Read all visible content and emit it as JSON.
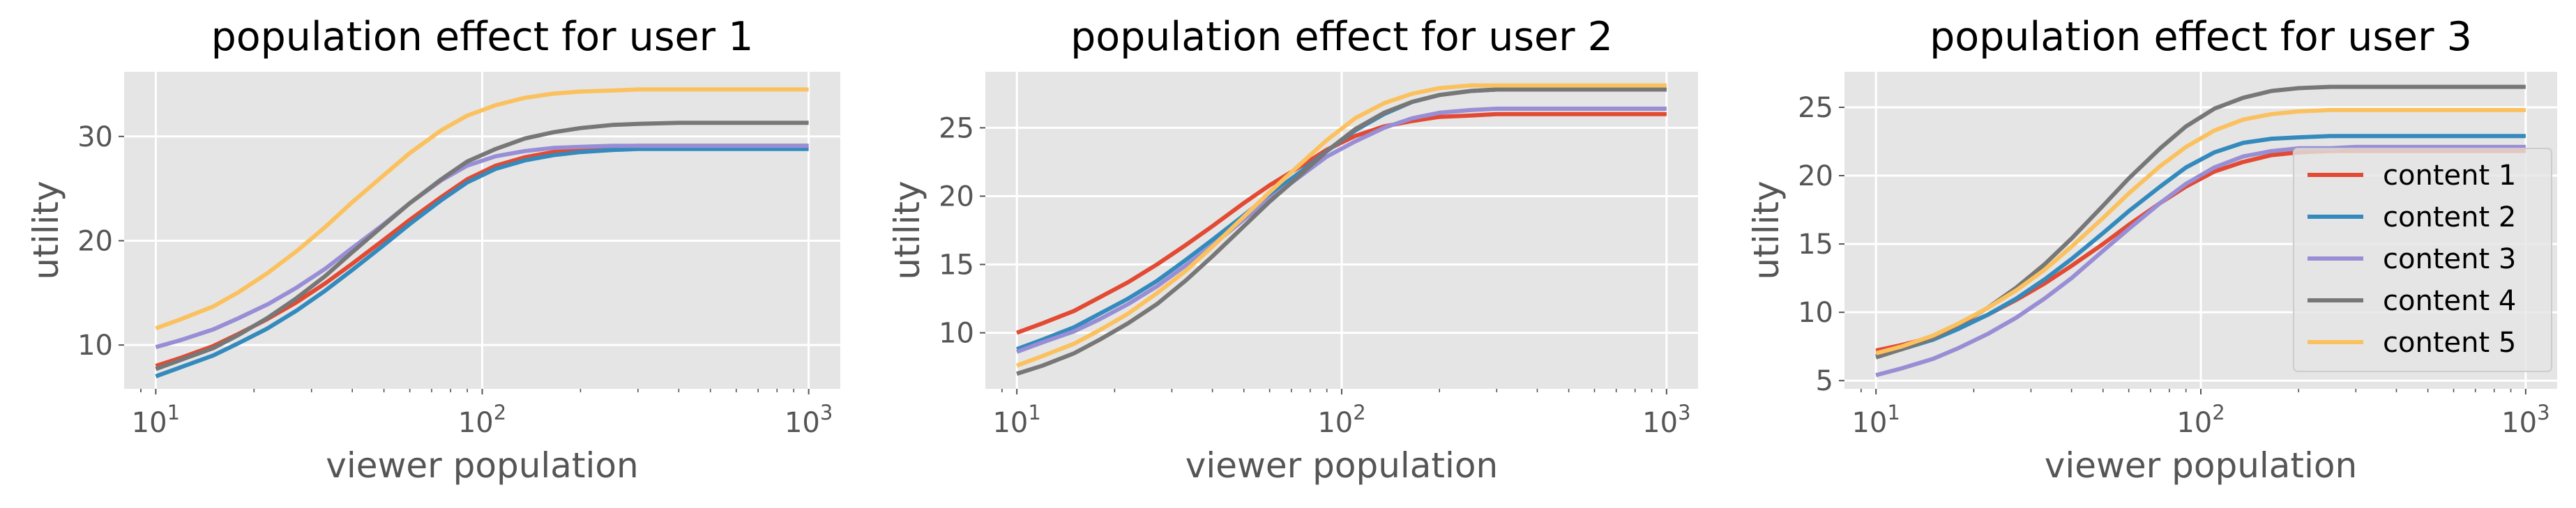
{
  "chart_data": [
    {
      "type": "line",
      "title": "population effect for user 1",
      "xlabel": "viewer population",
      "ylabel": "utility",
      "xscale": "log",
      "xlim": [
        8,
        1250
      ],
      "ylim": [
        5.8,
        36.2
      ],
      "xticks": [
        10,
        100,
        1000
      ],
      "yticks": [
        10,
        20,
        30
      ],
      "grid": true,
      "x": [
        10,
        12,
        15,
        18,
        22,
        27,
        33,
        40,
        50,
        60,
        75,
        90,
        110,
        135,
        165,
        200,
        250,
        300,
        400,
        500,
        700,
        1000
      ],
      "series": [
        {
          "name": "content 1",
          "color": "#E24A33",
          "values": [
            8.0,
            8.8,
            9.9,
            11.1,
            12.5,
            14.1,
            15.9,
            17.8,
            20.1,
            22.0,
            24.2,
            25.9,
            27.2,
            28.0,
            28.5,
            28.8,
            29.0,
            29.1,
            29.1,
            29.1,
            29.1,
            29.1
          ]
        },
        {
          "name": "content 2",
          "color": "#348ABD",
          "values": [
            7.0,
            7.9,
            9.0,
            10.2,
            11.6,
            13.3,
            15.2,
            17.2,
            19.6,
            21.6,
            23.9,
            25.6,
            26.9,
            27.7,
            28.2,
            28.5,
            28.7,
            28.8,
            28.8,
            28.8,
            28.8,
            28.8
          ]
        },
        {
          "name": "content 3",
          "color": "#988ED5",
          "values": [
            9.8,
            10.5,
            11.5,
            12.6,
            13.9,
            15.5,
            17.3,
            19.3,
            21.6,
            23.6,
            25.8,
            27.2,
            28.1,
            28.6,
            28.9,
            29.0,
            29.1,
            29.1,
            29.1,
            29.1,
            29.1,
            29.1
          ]
        },
        {
          "name": "content 4",
          "color": "#777777",
          "values": [
            7.7,
            8.6,
            9.7,
            11.0,
            12.6,
            14.5,
            16.6,
            18.9,
            21.5,
            23.6,
            25.9,
            27.6,
            28.8,
            29.8,
            30.4,
            30.8,
            31.1,
            31.2,
            31.3,
            31.3,
            31.3,
            31.3
          ]
        },
        {
          "name": "content 5",
          "color": "#FBC15E",
          "values": [
            11.6,
            12.5,
            13.7,
            15.1,
            16.9,
            19.0,
            21.3,
            23.7,
            26.3,
            28.4,
            30.6,
            32.0,
            33.0,
            33.7,
            34.1,
            34.3,
            34.4,
            34.5,
            34.5,
            34.5,
            34.5,
            34.5
          ]
        }
      ]
    },
    {
      "type": "line",
      "title": "population effect for user 2",
      "xlabel": "viewer population",
      "ylabel": "utility",
      "xscale": "log",
      "xlim": [
        8,
        1250
      ],
      "ylim": [
        5.9,
        29.1
      ],
      "xticks": [
        10,
        100,
        1000
      ],
      "yticks": [
        10,
        15,
        20,
        25
      ],
      "grid": true,
      "x": [
        10,
        12,
        15,
        18,
        22,
        27,
        33,
        40,
        50,
        60,
        75,
        90,
        110,
        135,
        165,
        200,
        250,
        300,
        400,
        500,
        700,
        1000
      ],
      "series": [
        {
          "name": "content 1",
          "color": "#E24A33",
          "values": [
            10.0,
            10.7,
            11.6,
            12.6,
            13.7,
            15.0,
            16.4,
            17.8,
            19.5,
            20.8,
            22.2,
            23.4,
            24.4,
            25.1,
            25.5,
            25.8,
            25.9,
            26.0,
            26.0,
            26.0,
            26.0,
            26.0
          ]
        },
        {
          "name": "content 2",
          "color": "#348ABD",
          "values": [
            8.8,
            9.5,
            10.4,
            11.4,
            12.5,
            13.8,
            15.3,
            16.8,
            18.6,
            20.1,
            21.8,
            23.3,
            24.8,
            26.0,
            26.9,
            27.4,
            27.7,
            27.8,
            27.8,
            27.8,
            27.8,
            27.8
          ]
        },
        {
          "name": "content 3",
          "color": "#988ED5",
          "values": [
            8.6,
            9.3,
            10.1,
            11.0,
            12.1,
            13.4,
            14.9,
            16.4,
            18.3,
            19.8,
            21.5,
            22.9,
            24.0,
            25.0,
            25.7,
            26.1,
            26.3,
            26.4,
            26.4,
            26.4,
            26.4,
            26.4
          ]
        },
        {
          "name": "content 4",
          "color": "#777777",
          "values": [
            7.0,
            7.6,
            8.5,
            9.5,
            10.7,
            12.1,
            13.8,
            15.6,
            17.8,
            19.6,
            21.6,
            23.3,
            24.9,
            26.1,
            26.9,
            27.4,
            27.7,
            27.8,
            27.8,
            27.8,
            27.8,
            27.8
          ]
        },
        {
          "name": "content 5",
          "color": "#FBC15E",
          "values": [
            7.6,
            8.3,
            9.2,
            10.2,
            11.4,
            12.9,
            14.5,
            16.3,
            18.5,
            20.3,
            22.4,
            24.1,
            25.7,
            26.8,
            27.5,
            27.9,
            28.1,
            28.1,
            28.1,
            28.1,
            28.1,
            28.1
          ]
        }
      ]
    },
    {
      "type": "line",
      "title": "population effect for user 3",
      "xlabel": "viewer population",
      "ylabel": "utility",
      "xscale": "log",
      "xlim": [
        8,
        1250
      ],
      "ylim": [
        4.4,
        27.6
      ],
      "xticks": [
        10,
        100,
        1000
      ],
      "yticks": [
        5,
        10,
        15,
        20,
        25
      ],
      "grid": true,
      "legend_loc": "center right",
      "x": [
        10,
        12,
        15,
        18,
        22,
        27,
        33,
        40,
        50,
        60,
        75,
        90,
        110,
        135,
        165,
        200,
        250,
        300,
        400,
        500,
        700,
        1000
      ],
      "series": [
        {
          "name": "content 1",
          "color": "#E24A33",
          "values": [
            7.2,
            7.6,
            8.2,
            8.9,
            9.8,
            10.9,
            12.1,
            13.4,
            15.0,
            16.4,
            18.0,
            19.2,
            20.3,
            21.0,
            21.5,
            21.7,
            21.8,
            21.8,
            21.8,
            21.8,
            21.8,
            21.8
          ]
        },
        {
          "name": "content 2",
          "color": "#348ABD",
          "values": [
            6.8,
            7.3,
            8.0,
            8.8,
            9.8,
            11.0,
            12.4,
            13.9,
            15.8,
            17.4,
            19.2,
            20.6,
            21.7,
            22.4,
            22.7,
            22.8,
            22.9,
            22.9,
            22.9,
            22.9,
            22.9,
            22.9
          ]
        },
        {
          "name": "content 3",
          "color": "#988ED5",
          "values": [
            5.4,
            5.9,
            6.6,
            7.4,
            8.4,
            9.6,
            11.0,
            12.5,
            14.5,
            16.1,
            18.0,
            19.4,
            20.6,
            21.4,
            21.8,
            22.0,
            22.0,
            22.1,
            22.1,
            22.1,
            22.1,
            22.1
          ]
        },
        {
          "name": "content 4",
          "color": "#777777",
          "values": [
            6.7,
            7.3,
            8.1,
            9.1,
            10.3,
            11.8,
            13.5,
            15.4,
            17.8,
            19.8,
            22.0,
            23.6,
            24.9,
            25.7,
            26.2,
            26.4,
            26.5,
            26.5,
            26.5,
            26.5,
            26.5,
            26.5
          ]
        },
        {
          "name": "content 5",
          "color": "#FBC15E",
          "values": [
            7.0,
            7.5,
            8.3,
            9.2,
            10.3,
            11.6,
            13.1,
            14.8,
            16.9,
            18.7,
            20.7,
            22.1,
            23.3,
            24.1,
            24.5,
            24.7,
            24.8,
            24.8,
            24.8,
            24.8,
            24.8,
            24.8
          ]
        }
      ]
    }
  ]
}
